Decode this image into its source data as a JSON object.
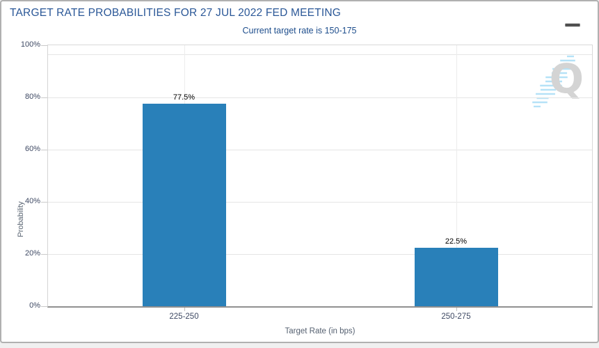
{
  "header": {
    "title": "TARGET RATE PROBABILITIES FOR 27 JUL 2022 FED MEETING",
    "menu_icon": "hamburger-menu-icon"
  },
  "subtitle": "Current target rate is 150-175",
  "chart_data": {
    "type": "bar",
    "title": "TARGET RATE PROBABILITIES FOR 27 JUL 2022 FED MEETING",
    "subtitle": "Current target rate is 150-175",
    "categories": [
      "225-250",
      "250-275"
    ],
    "values": [
      77.5,
      22.5
    ],
    "value_labels": [
      "77.5%",
      "22.5%"
    ],
    "xlabel": "Target Rate (in bps)",
    "ylabel": "Probability",
    "ylim": [
      0,
      100
    ],
    "yticks": [
      0,
      20,
      40,
      60,
      80,
      100
    ],
    "ytick_suffix": "%",
    "grid": true,
    "legend": "none",
    "bar_color": "#2980b9"
  },
  "watermark": {
    "letter": "Q",
    "letter_color": "#d4d4d4",
    "dash_color": "#b5e2f7"
  },
  "colors": {
    "title": "#2a5797",
    "subtitle": "#1d4d8c",
    "bar": "#2980b9",
    "tick_label": "#3e4963",
    "axis_title": "#5a6573",
    "grid": "#e5e5e5",
    "card_border": "#b0b0b0",
    "page_background": "#f0f0f0"
  }
}
